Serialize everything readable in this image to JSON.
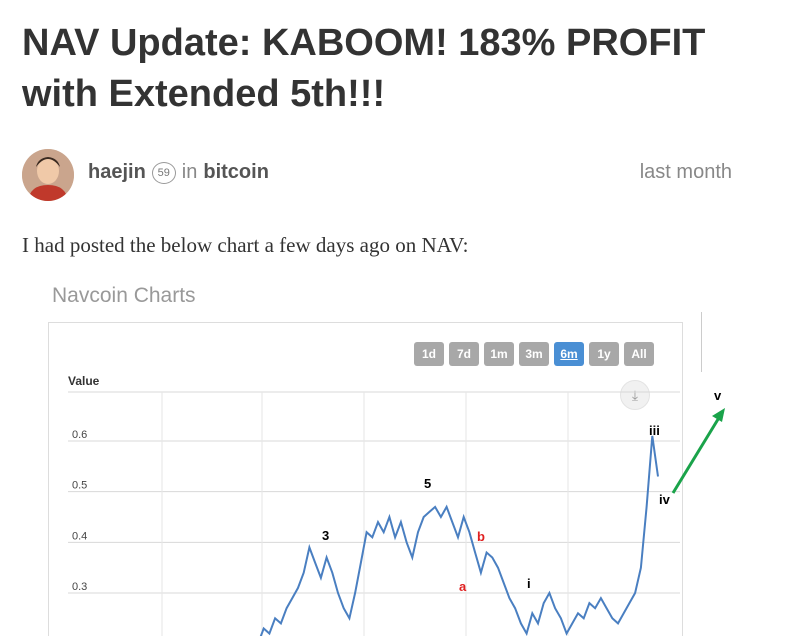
{
  "post": {
    "title": "NAV Update: KABOOM! 183% PROFIT with Extended 5th!!!",
    "author": "haejin",
    "reputation": "59",
    "in_text": "in",
    "category": "bitcoin",
    "time": "last month",
    "intro": "I had posted the below chart a few days ago on NAV:"
  },
  "chart_image": {
    "heading": "Navcoin Charts",
    "range_buttons": [
      "1d",
      "7d",
      "1m",
      "3m",
      "6m",
      "1y",
      "All"
    ],
    "active_range": "6m",
    "download_icon": "download-icon"
  },
  "chart_data": {
    "type": "line",
    "ylabel": "Value",
    "yticks": [
      "0.6",
      "0.5",
      "0.4",
      "0.3"
    ],
    "ylim": [
      0.25,
      0.72
    ],
    "grid": true,
    "series": [
      {
        "values": [
          0.2,
          0.23,
          0.22,
          0.25,
          0.24,
          0.27,
          0.29,
          0.31,
          0.34,
          0.39,
          0.36,
          0.33,
          0.37,
          0.34,
          0.3,
          0.27,
          0.25,
          0.3,
          0.36,
          0.42,
          0.41,
          0.44,
          0.42,
          0.45,
          0.41,
          0.44,
          0.4,
          0.37,
          0.42,
          0.45,
          0.46,
          0.47,
          0.45,
          0.47,
          0.44,
          0.41,
          0.45,
          0.42,
          0.38,
          0.34,
          0.38,
          0.37,
          0.35,
          0.32,
          0.29,
          0.27,
          0.24,
          0.22,
          0.26,
          0.24,
          0.28,
          0.3,
          0.27,
          0.25,
          0.22,
          0.24,
          0.26,
          0.25,
          0.28,
          0.27,
          0.29,
          0.27,
          0.25,
          0.24,
          0.26,
          0.28,
          0.3,
          0.35,
          0.47,
          0.61,
          0.53
        ],
        "color": "#4a7fc1"
      }
    ],
    "annotations": [
      {
        "text": "3",
        "color": "#000000"
      },
      {
        "text": "5",
        "color": "#000000"
      },
      {
        "text": "b",
        "color": "#e02020"
      },
      {
        "text": "a",
        "color": "#e02020"
      },
      {
        "text": "i",
        "color": "#000000"
      },
      {
        "text": "iii",
        "color": "#000000"
      },
      {
        "text": "iv",
        "color": "#000000"
      },
      {
        "text": "v",
        "color": "#000000"
      }
    ],
    "projection_arrow_color": "#1aa34a"
  }
}
